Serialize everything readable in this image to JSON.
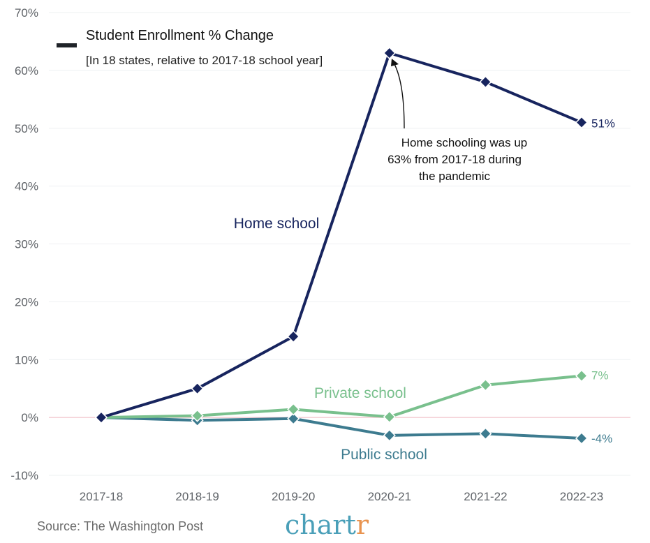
{
  "chart_data": {
    "type": "line",
    "title": "Student Enrollment % Change",
    "subtitle": "[In 18 states, relative to 2017-18 school year]",
    "categories": [
      "2017-18",
      "2018-19",
      "2019-20",
      "2020-21",
      "2021-22",
      "2022-23"
    ],
    "ylim": [
      -10,
      70
    ],
    "yticks": [
      -10,
      0,
      10,
      20,
      30,
      40,
      50,
      60,
      70
    ],
    "ytick_labels": [
      "-10%",
      "0%",
      "10%",
      "20%",
      "30%",
      "40%",
      "50%",
      "60%",
      "70%"
    ],
    "grid": true,
    "series": [
      {
        "name": "Home school",
        "color": "#17245e",
        "values": [
          0,
          5,
          14,
          63,
          58,
          51
        ],
        "end_label": "51%"
      },
      {
        "name": "Private school",
        "color": "#79c08d",
        "values": [
          0,
          0.3,
          1.4,
          0.1,
          5.6,
          7.2
        ],
        "end_label": "7%"
      },
      {
        "name": "Public school",
        "color": "#3d7b8f",
        "values": [
          0,
          -0.5,
          -0.2,
          -3.1,
          -2.8,
          -3.6
        ],
        "end_label": "-4%"
      }
    ],
    "annotation": {
      "lines": [
        "Home schooling was up",
        "63% from 2017-18 during",
        "the pandemic"
      ],
      "target_series": "Home school",
      "target_category": "2020-21"
    },
    "legend": {
      "position": "top-left",
      "swatch_color": "#1f2328"
    }
  },
  "footer": {
    "source": "Source: The Washington Post",
    "brand_main": "chart",
    "brand_accent": "r",
    "brand_color": "#4a9fb8",
    "brand_accent_color": "#e8934f"
  }
}
